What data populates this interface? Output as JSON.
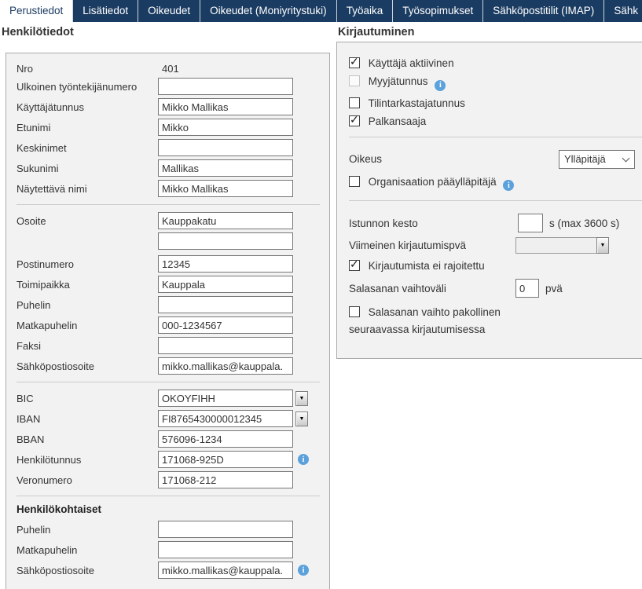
{
  "colors": {
    "tab_bar": "#1b3c62",
    "active_tab_text": "#1b3c62",
    "panel_background": "#f2f2f2",
    "info_icon_blue": "#5ba1dc"
  },
  "tabs": [
    "Perustiedot",
    "Lisätiedot",
    "Oikeudet",
    "Oikeudet (Moniyritystuki)",
    "Työaika",
    "Työsopimukset",
    "Sähköpostitilit (IMAP)",
    "Sähk"
  ],
  "icons": {
    "combo_arrow": "▼",
    "info": "i"
  },
  "person": {
    "heading": "Henkilötiedot",
    "nro": {
      "label": "Nro",
      "value": "401"
    },
    "ulkoinen": {
      "label": "Ulkoinen työntekijänumero",
      "value": ""
    },
    "kayttajatunnus": {
      "label": "Käyttäjätunnus",
      "value": "Mikko Mallikas"
    },
    "etunimi": {
      "label": "Etunimi",
      "value": "Mikko"
    },
    "keskinimet": {
      "label": "Keskinimet",
      "value": ""
    },
    "sukunimi": {
      "label": "Sukunimi",
      "value": "Mallikas"
    },
    "naytettava_nimi": {
      "label": "Näytettävä nimi",
      "value": "Mikko Mallikas"
    },
    "osoite": {
      "label": "Osoite",
      "value1": "Kauppakatu",
      "value2": ""
    },
    "postinumero": {
      "label": "Postinumero",
      "value": "12345"
    },
    "toimipaikka": {
      "label": "Toimipaikka",
      "value": "Kauppala"
    },
    "puhelin": {
      "label": "Puhelin",
      "value": ""
    },
    "matkapuhelin": {
      "label": "Matkapuhelin",
      "value": "000-1234567"
    },
    "faksi": {
      "label": "Faksi",
      "value": ""
    },
    "sahkopostiosoite": {
      "label": "Sähköpostiosoite",
      "value": "mikko.mallikas@kauppala."
    },
    "bic": {
      "label": "BIC",
      "value": "OKOYFIHH"
    },
    "iban": {
      "label": "IBAN",
      "value": "FI8765430000012345"
    },
    "bban": {
      "label": "BBAN",
      "value": "576096-1234"
    },
    "henkilotunnus": {
      "label": "Henkilötunnus",
      "value": "171068-925D"
    },
    "veronumero": {
      "label": "Veronumero",
      "value": "171068-212"
    },
    "personal": {
      "heading": "Henkilökohtaiset",
      "puhelin": {
        "label": "Puhelin",
        "value": ""
      },
      "matkapuhelin": {
        "label": "Matkapuhelin",
        "value": ""
      },
      "sahkopostiosoite": {
        "label": "Sähköpostiosoite",
        "value": "mikko.mallikas@kauppala."
      }
    }
  },
  "login": {
    "heading": "Kirjautuminen",
    "kayttaja_aktiivinen": {
      "label": "Käyttäjä aktiivinen",
      "checked": true,
      "disabled": false
    },
    "myyjatunnus": {
      "label": "Myyjätunnus",
      "checked": false,
      "disabled": true
    },
    "tilintarkastajatunnus": {
      "label": "Tilintarkastajatunnus",
      "checked": false,
      "disabled": false
    },
    "palkansaaja": {
      "label": "Palkansaaja",
      "checked": true,
      "disabled": false
    },
    "oikeus": {
      "label": "Oikeus",
      "value": "Ylläpitäjä"
    },
    "org_paayllapitaja": {
      "label": "Organisaation pääylläpitäjä",
      "checked": false,
      "disabled": false
    },
    "istunnon_kesto": {
      "label": "Istunnon kesto",
      "value": "",
      "suffix": "s (max 3600 s)"
    },
    "viimeinen_kirjautumispva": {
      "label": "Viimeinen kirjautumispvä",
      "value": ""
    },
    "kirjautumista_ei_rajoitettu": {
      "label": "Kirjautumista ei rajoitettu",
      "checked": true,
      "disabled": false
    },
    "salasanan_vaihtovali": {
      "label": "Salasanan vaihtoväli",
      "value": "0",
      "suffix": "pvä"
    },
    "salasanan_vaihto_pakollinen": {
      "label": "Salasanan vaihto pakollinen seuraavassa kirjautumisessa",
      "checked": false,
      "disabled": false
    }
  }
}
